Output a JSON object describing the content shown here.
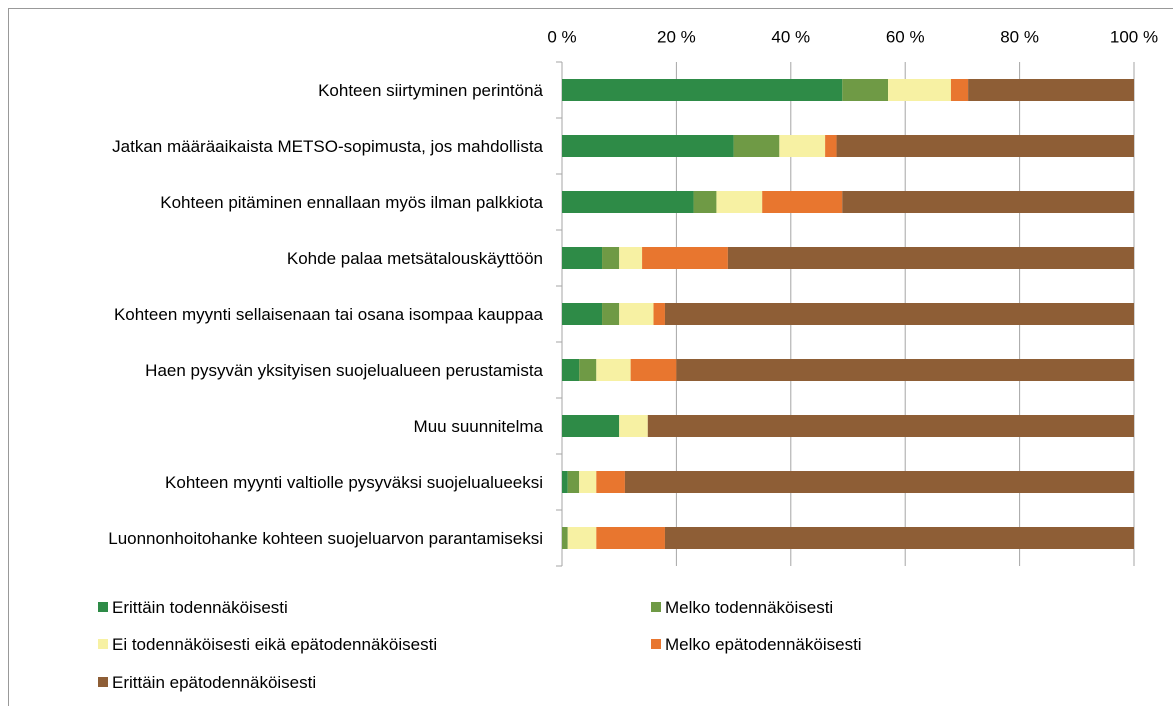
{
  "chart_data": {
    "type": "bar",
    "orientation": "horizontal",
    "stacked": true,
    "categories": [
      "Kohteen siirtyminen perintönä",
      "Jatkan määräaikaista METSO-sopimusta, jos mahdollista",
      "Kohteen pitäminen ennallaan myös ilman palkkiota",
      "Kohde palaa metsätalouskäyttöön",
      "Kohteen myynti sellaisenaan tai osana isompaa kauppaa",
      "Haen pysyvän yksityisen suojelualueen perustamista",
      "Muu suunnitelma",
      "Kohteen myynti valtiolle pysyväksi suojelualueeksi",
      "Luonnonhoitohanke kohteen suojeluarvon parantamiseksi"
    ],
    "series": [
      {
        "name": "Erittäin todennäköisesti",
        "color": "#2e8b47",
        "values": [
          49,
          30,
          23,
          7,
          7,
          3,
          10,
          1,
          0
        ]
      },
      {
        "name": "Melko todennäköisesti",
        "color": "#6f9a45",
        "values": [
          8,
          8,
          4,
          3,
          3,
          3,
          0,
          2,
          1
        ]
      },
      {
        "name": "Ei todennäköisesti eikä epätodennäköisesti",
        "color": "#f7f1a3",
        "values": [
          11,
          8,
          8,
          4,
          6,
          6,
          5,
          3,
          5
        ]
      },
      {
        "name": "Melko epätodennäköisesti",
        "color": "#e8762f",
        "values": [
          3,
          2,
          14,
          15,
          2,
          8,
          0,
          5,
          12
        ]
      },
      {
        "name": "Erittäin epätodennäköisesti",
        "color": "#8e5e36",
        "values": [
          29,
          52,
          51,
          71,
          82,
          80,
          85,
          89,
          82
        ]
      }
    ],
    "xlim": [
      0,
      100
    ],
    "xticks": [
      {
        "value": 0,
        "label": "0 %"
      },
      {
        "value": 20,
        "label": "20 %"
      },
      {
        "value": 40,
        "label": "40 %"
      },
      {
        "value": 60,
        "label": "60 %"
      },
      {
        "value": 80,
        "label": "80 %"
      },
      {
        "value": 100,
        "label": "100 %"
      }
    ],
    "grid": true,
    "legend": "bottom"
  }
}
